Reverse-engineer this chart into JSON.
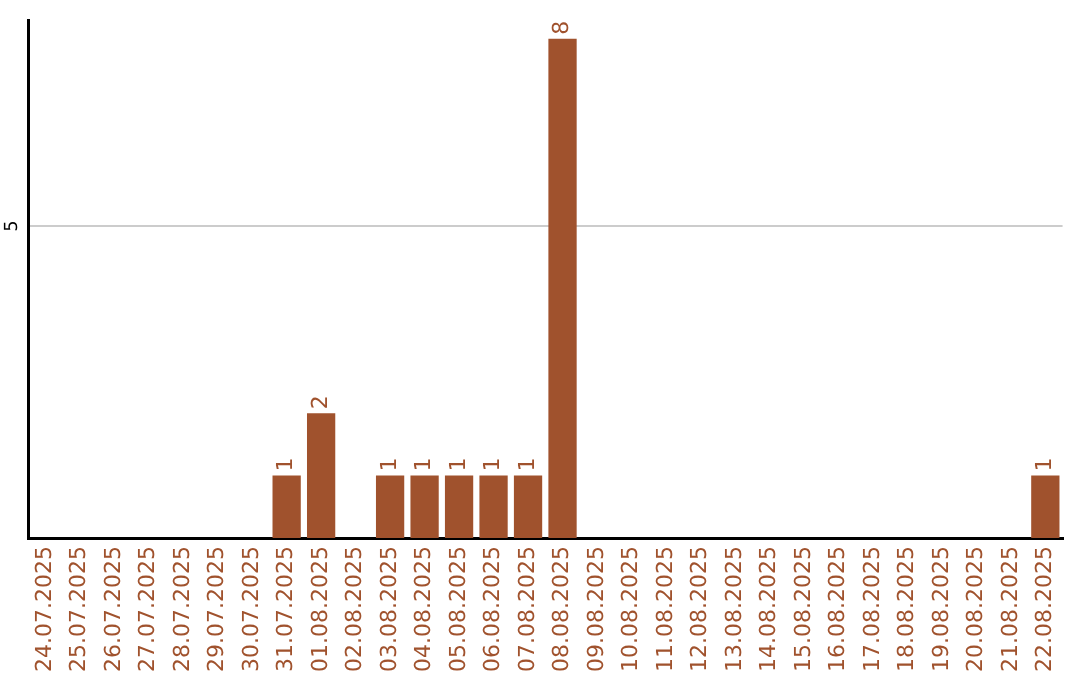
{
  "chart_data": {
    "type": "bar",
    "categories": [
      "24.07.2025",
      "25.07.2025",
      "26.07.2025",
      "27.07.2025",
      "28.07.2025",
      "29.07.2025",
      "30.07.2025",
      "31.07.2025",
      "01.08.2025",
      "02.08.2025",
      "03.08.2025",
      "04.08.2025",
      "05.08.2025",
      "06.08.2025",
      "07.08.2025",
      "08.08.2025",
      "09.08.2025",
      "10.08.2025",
      "11.08.2025",
      "12.08.2025",
      "13.08.2025",
      "14.08.2025",
      "15.08.2025",
      "16.08.2025",
      "17.08.2025",
      "18.08.2025",
      "19.08.2025",
      "20.08.2025",
      "21.08.2025",
      "22.08.2025"
    ],
    "values": [
      0,
      0,
      0,
      0,
      0,
      0,
      0,
      1,
      2,
      0,
      1,
      1,
      1,
      1,
      1,
      8,
      0,
      0,
      0,
      0,
      0,
      0,
      0,
      0,
      0,
      0,
      0,
      0,
      0,
      1
    ],
    "value_labels": [
      null,
      null,
      null,
      null,
      null,
      null,
      null,
      "1",
      "2",
      null,
      "1",
      "1",
      "1",
      "1",
      "1",
      "8",
      null,
      null,
      null,
      null,
      null,
      null,
      null,
      null,
      null,
      null,
      null,
      null,
      null,
      "1"
    ],
    "color": "#a0522d",
    "ylim": [
      0,
      8.3
    ],
    "yticks": [
      5
    ],
    "grid": "y",
    "legend": false
  }
}
